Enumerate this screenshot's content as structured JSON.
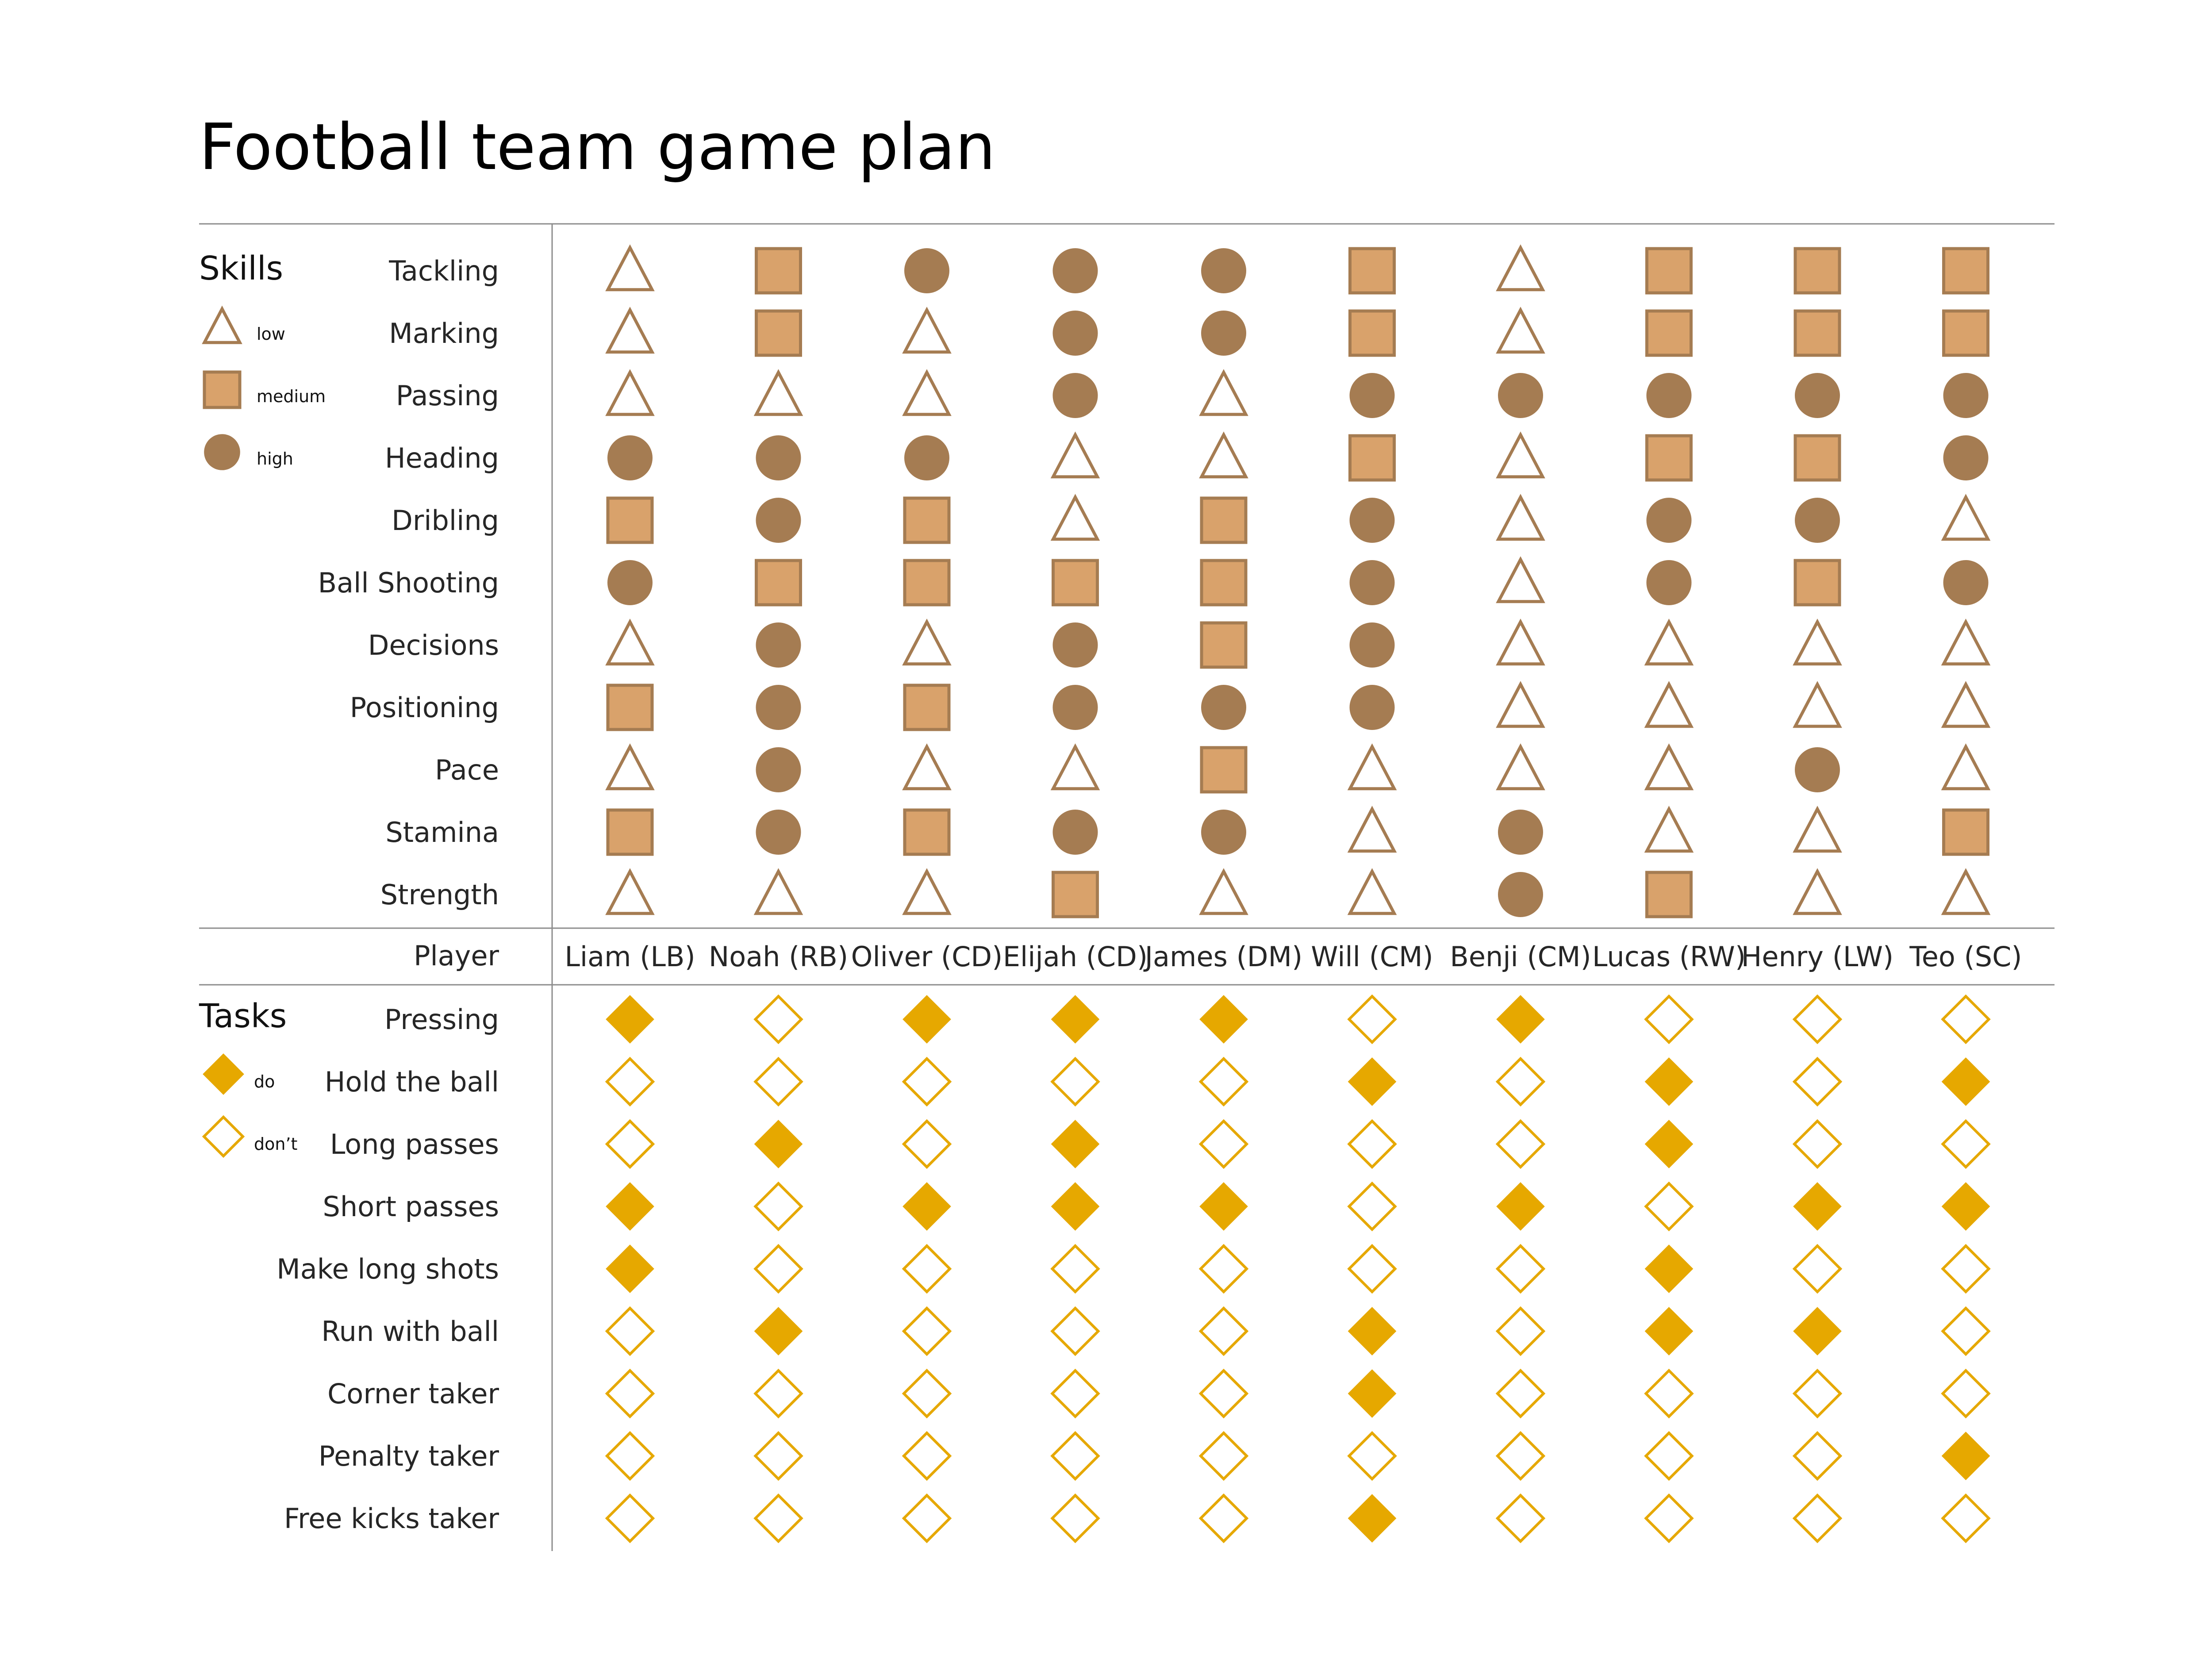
{
  "chart_data": {
    "type": "table",
    "title": "Football team game plan",
    "colors": {
      "skill_stroke": "#a57c52",
      "skill_medium_fill": "#d9a26b",
      "skill_high_fill": "#a57c52",
      "task": "#e6a800"
    },
    "players_label": "Player",
    "players": [
      "Liam (LB)",
      "Noah (RB)",
      "Oliver (CD)",
      "Elijah (CD)",
      "James (DM)",
      "Will (CM)",
      "Benji (CM)",
      "Lucas (RW)",
      "Henry (LW)",
      "Teo (SC)"
    ],
    "skills": {
      "heading": "Skills",
      "legend": [
        {
          "key": "low",
          "label": "low",
          "shape": "triangle"
        },
        {
          "key": "medium",
          "label": "medium",
          "shape": "square"
        },
        {
          "key": "high",
          "label": "high",
          "shape": "circle"
        }
      ],
      "rows": [
        {
          "label": "Tackling",
          "values": [
            "low",
            "medium",
            "high",
            "high",
            "high",
            "medium",
            "low",
            "medium",
            "medium",
            "medium"
          ]
        },
        {
          "label": "Marking",
          "values": [
            "low",
            "medium",
            "low",
            "high",
            "high",
            "medium",
            "low",
            "medium",
            "medium",
            "medium"
          ]
        },
        {
          "label": "Passing",
          "values": [
            "low",
            "low",
            "low",
            "high",
            "low",
            "high",
            "high",
            "high",
            "high",
            "high"
          ]
        },
        {
          "label": "Heading",
          "values": [
            "high",
            "high",
            "high",
            "low",
            "low",
            "medium",
            "low",
            "medium",
            "medium",
            "high"
          ]
        },
        {
          "label": "Dribling",
          "values": [
            "medium",
            "high",
            "medium",
            "low",
            "medium",
            "high",
            "low",
            "high",
            "high",
            "low"
          ]
        },
        {
          "label": "Ball Shooting",
          "values": [
            "high",
            "medium",
            "medium",
            "medium",
            "medium",
            "high",
            "low",
            "high",
            "medium",
            "high"
          ]
        },
        {
          "label": "Decisions",
          "values": [
            "low",
            "high",
            "low",
            "high",
            "medium",
            "high",
            "low",
            "low",
            "low",
            "low"
          ]
        },
        {
          "label": "Positioning",
          "values": [
            "medium",
            "high",
            "medium",
            "high",
            "high",
            "high",
            "low",
            "low",
            "low",
            "low"
          ]
        },
        {
          "label": "Pace",
          "values": [
            "low",
            "high",
            "low",
            "low",
            "medium",
            "low",
            "low",
            "low",
            "high",
            "low"
          ]
        },
        {
          "label": "Stamina",
          "values": [
            "medium",
            "high",
            "medium",
            "high",
            "high",
            "low",
            "high",
            "low",
            "low",
            "medium"
          ]
        },
        {
          "label": "Strength",
          "values": [
            "low",
            "low",
            "low",
            "medium",
            "low",
            "low",
            "high",
            "medium",
            "low",
            "low"
          ]
        }
      ]
    },
    "tasks": {
      "heading": "Tasks",
      "legend": [
        {
          "key": "do",
          "label": "do",
          "shape": "filled-diamond"
        },
        {
          "key": "dont",
          "label": "don’t",
          "shape": "hollow-diamond"
        }
      ],
      "rows": [
        {
          "label": "Pressing",
          "values": [
            "do",
            "dont",
            "do",
            "do",
            "do",
            "dont",
            "do",
            "dont",
            "dont",
            "dont"
          ]
        },
        {
          "label": "Hold the ball",
          "values": [
            "dont",
            "dont",
            "dont",
            "dont",
            "dont",
            "do",
            "dont",
            "do",
            "dont",
            "do"
          ]
        },
        {
          "label": "Long passes",
          "values": [
            "dont",
            "do",
            "dont",
            "do",
            "dont",
            "dont",
            "dont",
            "do",
            "dont",
            "dont"
          ]
        },
        {
          "label": "Short passes",
          "values": [
            "do",
            "dont",
            "do",
            "do",
            "do",
            "dont",
            "do",
            "dont",
            "do",
            "do"
          ]
        },
        {
          "label": "Make long shots",
          "values": [
            "do",
            "dont",
            "dont",
            "dont",
            "dont",
            "dont",
            "dont",
            "do",
            "dont",
            "dont"
          ]
        },
        {
          "label": "Run with ball",
          "values": [
            "dont",
            "do",
            "dont",
            "dont",
            "dont",
            "do",
            "dont",
            "do",
            "do",
            "dont"
          ]
        },
        {
          "label": "Corner taker",
          "values": [
            "dont",
            "dont",
            "dont",
            "dont",
            "dont",
            "do",
            "dont",
            "dont",
            "dont",
            "dont"
          ]
        },
        {
          "label": "Penalty taker",
          "values": [
            "dont",
            "dont",
            "dont",
            "dont",
            "dont",
            "dont",
            "dont",
            "dont",
            "dont",
            "do"
          ]
        },
        {
          "label": "Free kicks taker",
          "values": [
            "dont",
            "dont",
            "dont",
            "dont",
            "dont",
            "do",
            "dont",
            "dont",
            "dont",
            "dont"
          ]
        }
      ]
    }
  }
}
